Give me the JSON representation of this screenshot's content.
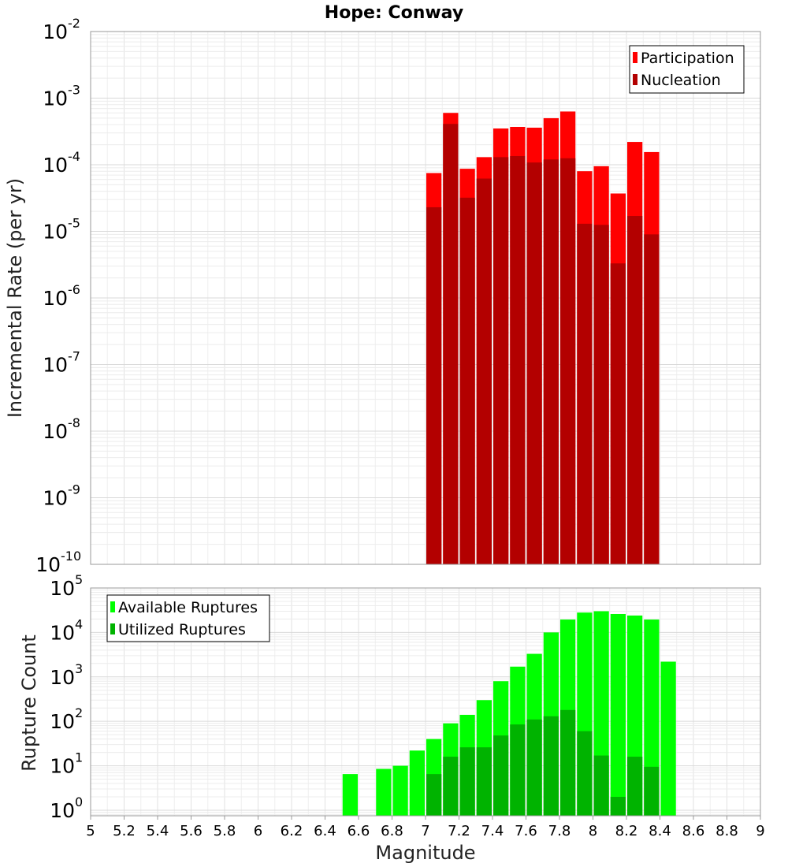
{
  "chart_data": [
    {
      "type": "bar",
      "title": "Hope: Conway",
      "ylabel": "Incremental Rate (per yr)",
      "xlabel": "",
      "y_scale": "log",
      "ylim": [
        1e-10,
        0.01
      ],
      "xlim": [
        5,
        9
      ],
      "bin_width": 0.1,
      "grid": true,
      "legend_position": "top-right",
      "y_ticks": [
        {
          "base": "10",
          "exp": "-10"
        },
        {
          "base": "10",
          "exp": "-9"
        },
        {
          "base": "10",
          "exp": "-8"
        },
        {
          "base": "10",
          "exp": "-7"
        },
        {
          "base": "10",
          "exp": "-6"
        },
        {
          "base": "10",
          "exp": "-5"
        },
        {
          "base": "10",
          "exp": "-4"
        },
        {
          "base": "10",
          "exp": "-3"
        },
        {
          "base": "10",
          "exp": "-2"
        }
      ],
      "x": [
        7.05,
        7.15,
        7.25,
        7.35,
        7.45,
        7.55,
        7.65,
        7.75,
        7.85,
        7.95,
        8.05,
        8.15,
        8.25,
        8.35
      ],
      "series": [
        {
          "name": "Participation",
          "color": "#ff0000",
          "values": [
            7.5e-05,
            0.0006,
            8.7e-05,
            0.00013,
            0.00035,
            0.00037,
            0.00036,
            0.0005,
            0.00063,
            8e-05,
            9.5e-05,
            3.7e-05,
            0.00022,
            0.000155
          ]
        },
        {
          "name": "Nucleation",
          "color": "#b30000",
          "values": [
            2.3e-05,
            0.00041,
            3.2e-05,
            6.2e-05,
            0.00013,
            0.000135,
            0.000108,
            0.00012,
            0.000125,
            1.3e-05,
            1.25e-05,
            3.3e-06,
            1.7e-05,
            9e-06
          ]
        }
      ]
    },
    {
      "type": "bar",
      "title": "",
      "ylabel": "Rupture Count",
      "xlabel": "Magnitude",
      "y_scale": "log",
      "ylim": [
        0.75,
        100000.0
      ],
      "xlim": [
        5,
        9
      ],
      "bin_width": 0.1,
      "grid": true,
      "legend_position": "top-left",
      "y_ticks": [
        {
          "base": "10",
          "exp": "0"
        },
        {
          "base": "10",
          "exp": "1"
        },
        {
          "base": "10",
          "exp": "2"
        },
        {
          "base": "10",
          "exp": "3"
        },
        {
          "base": "10",
          "exp": "4"
        },
        {
          "base": "10",
          "exp": "5"
        }
      ],
      "x_ticks": [
        "5",
        "5.2",
        "5.4",
        "5.6",
        "5.8",
        "6",
        "6.2",
        "6.4",
        "6.6",
        "6.8",
        "7",
        "7.2",
        "7.4",
        "7.6",
        "7.8",
        "8",
        "8.2",
        "8.4",
        "8.6",
        "8.8",
        "9"
      ],
      "x": [
        6.55,
        6.75,
        6.85,
        6.95,
        7.05,
        7.15,
        7.25,
        7.35,
        7.45,
        7.55,
        7.65,
        7.75,
        7.85,
        7.95,
        8.05,
        8.15,
        8.25,
        8.35,
        8.45
      ],
      "series": [
        {
          "name": "Available Ruptures",
          "color": "#00ff00",
          "values": [
            6.5,
            8.5,
            10,
            22,
            40,
            90,
            140,
            300,
            800,
            1700,
            3300,
            10000,
            19500,
            28000,
            30000,
            26000,
            24000,
            19500,
            2200
          ]
        },
        {
          "name": "Utilized Ruptures",
          "color": "#00b300",
          "values": [
            0,
            0,
            0,
            0,
            6.5,
            16,
            26,
            26,
            48,
            85,
            110,
            130,
            180,
            60,
            17,
            2,
            16,
            9.5,
            0
          ]
        }
      ]
    }
  ]
}
